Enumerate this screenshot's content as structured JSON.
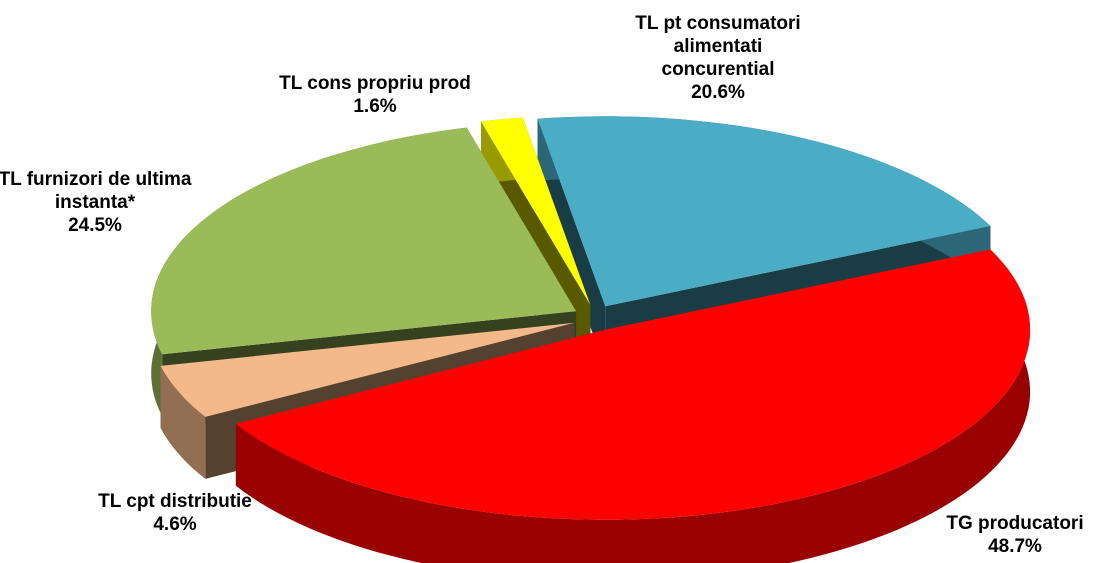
{
  "chart_data": {
    "type": "pie",
    "categories": [
      "TG producatori",
      "TL cpt distributie",
      "TL furnizori de ultima instanta*",
      "TL cons propriu prod",
      "TL pt consumatori alimentati concurential"
    ],
    "values": [
      48.7,
      4.6,
      24.5,
      1.6,
      20.6
    ],
    "value_labels": [
      "48.7%",
      "4.6%",
      "24.5%",
      "1.6%",
      "20.6%"
    ],
    "colors": [
      "#ff0000",
      "#f4b98a",
      "#9bbb59",
      "#ffff00",
      "#4bacc6"
    ]
  }
}
